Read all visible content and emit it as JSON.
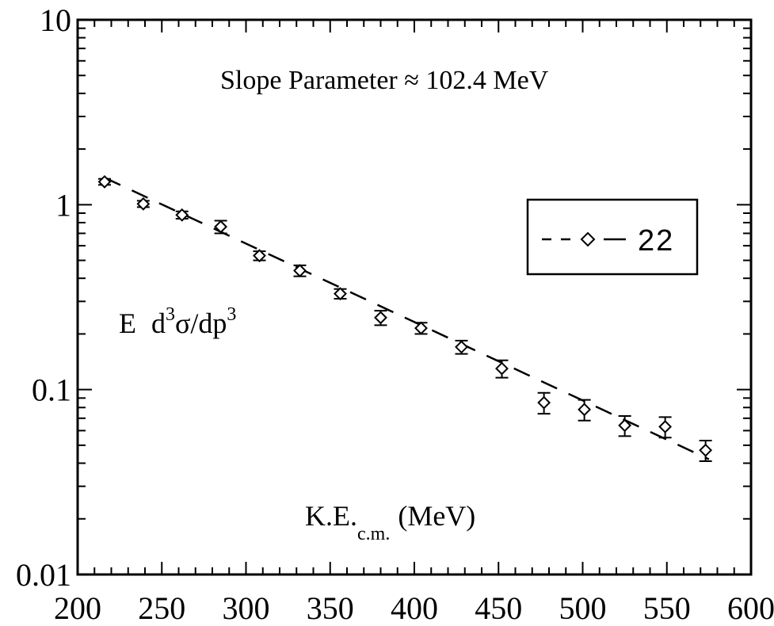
{
  "chart_data": {
    "type": "scatter",
    "title": "",
    "annotation": "Slope Parameter ≈ 102.4 MeV",
    "xlabel": {
      "main": "K.E.",
      "subscript": "c.m.",
      "unit": "(MeV)"
    },
    "ylabel": {
      "E": "E",
      "d1": "d",
      "exp1": "3",
      "sigma": "σ/dp",
      "exp2": "3"
    },
    "xlim": [
      200,
      600
    ],
    "ylim": [
      0.01,
      10
    ],
    "yscale": "log",
    "xticks": [
      "200",
      "250",
      "300",
      "350",
      "400",
      "450",
      "500",
      "550",
      "600"
    ],
    "yticks": [
      "0.01",
      "0.1",
      "1",
      "10"
    ],
    "grid": false,
    "legend": {
      "position": "right",
      "entries": [
        "22"
      ]
    },
    "series": [
      {
        "name": "22",
        "marker": "diamond",
        "line": "dashed-fit",
        "x": [
          216,
          239,
          262,
          285,
          308,
          332,
          356,
          380,
          404,
          428,
          452,
          477,
          501,
          525,
          549,
          573
        ],
        "y": [
          1.33,
          1.01,
          0.88,
          0.76,
          0.53,
          0.44,
          0.33,
          0.245,
          0.215,
          0.17,
          0.13,
          0.085,
          0.078,
          0.064,
          0.063,
          0.047
        ],
        "err_low": [
          0.05,
          0.04,
          0.04,
          0.06,
          0.03,
          0.03,
          0.02,
          0.022,
          0.015,
          0.014,
          0.014,
          0.011,
          0.01,
          0.008,
          0.008,
          0.006
        ],
        "err_high": [
          0.05,
          0.04,
          0.04,
          0.06,
          0.03,
          0.03,
          0.02,
          0.022,
          0.015,
          0.014,
          0.014,
          0.011,
          0.01,
          0.008,
          0.008,
          0.006
        ]
      }
    ],
    "fit": {
      "x": [
        216,
        575
      ],
      "y": [
        1.4,
        0.042
      ]
    }
  }
}
